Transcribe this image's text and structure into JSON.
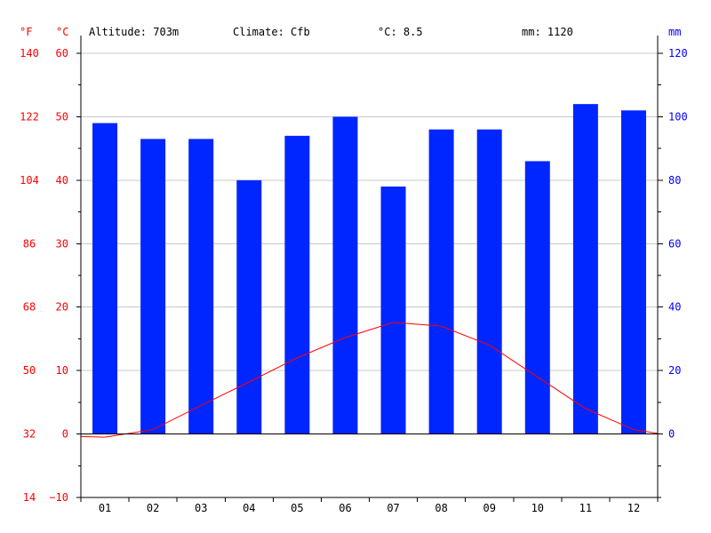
{
  "header": {
    "altitude": "Altitude: 703m",
    "climate": "Climate: Cfb",
    "avg_temp": "°C: 8.5",
    "precip": "mm: 1120",
    "unit_f": "°F",
    "unit_c": "°C",
    "unit_mm": "mm"
  },
  "chart_data": {
    "type": "bar",
    "categories": [
      "01",
      "02",
      "03",
      "04",
      "05",
      "06",
      "07",
      "08",
      "09",
      "10",
      "11",
      "12"
    ],
    "series": [
      {
        "values": [
          98,
          93,
          93,
          80,
          94,
          100,
          78,
          96,
          96,
          86,
          104,
          102
        ]
      },
      {
        "values": [
          -0.5,
          0.7,
          4.5,
          8.2,
          12.0,
          15.2,
          17.6,
          17.0,
          14.0,
          9.0,
          4.0,
          0.7
        ]
      }
    ],
    "y_celsius": {
      "ylim": [
        -10,
        60
      ],
      "ticks": [
        -10,
        0,
        10,
        20,
        30,
        40,
        50,
        60
      ]
    },
    "y_fahrenheit_ticks": [
      14,
      32,
      50,
      68,
      86,
      104,
      122,
      140
    ],
    "y_precip": {
      "ylim": [
        0,
        120
      ],
      "ticks": [
        0,
        20,
        40,
        60,
        80,
        100,
        120
      ]
    },
    "grid": true,
    "colors": {
      "bars": "#0026ff",
      "line": "#ff0000",
      "temp_axis": "#ff0000",
      "precip_axis": "#0000ff",
      "grid": "#c8c8c8"
    }
  }
}
